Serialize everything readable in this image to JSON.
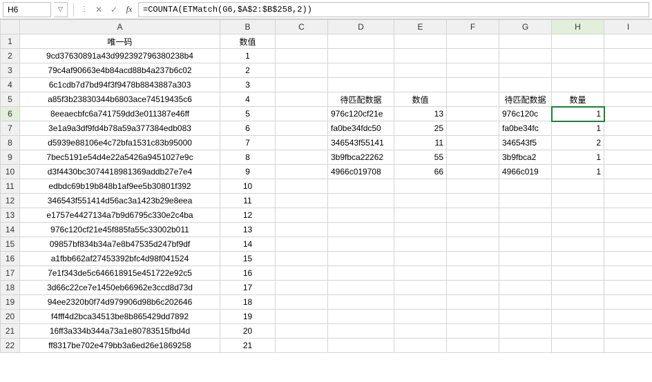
{
  "nameBox": "H6",
  "formula": "=COUNTA(ETMatch(G6,$A$2:$B$258,2))",
  "columns": [
    "A",
    "B",
    "C",
    "D",
    "E",
    "F",
    "G",
    "H",
    "I"
  ],
  "activeCell": {
    "col": "H",
    "row": 6
  },
  "headers": {
    "A1": "唯一码",
    "B1": "数值",
    "D5": "待匹配数据",
    "E5": "数值",
    "G5": "待匹配数据",
    "H5": "数量"
  },
  "colA": [
    "9cd37630891a43d992392796380238b4",
    "79c4af90663e4b84acd88b4a237b6c02",
    "6c1cdb7d7bd94f3f9478b8843887a303",
    "a85f3b23830344b6803ace74519435c6",
    "8eeaecbfc6a741759dd3e011387e46ff",
    "3e1a9a3df9fd4b78a59a377384edb083",
    "d5939e88106e4c72bfa1531c83b95000",
    "7bec5191e54d4e22a5426a9451027e9c",
    "d3f4430bc3074418981369addb27e7e4",
    "edbdc69b19b848b1af9ee5b30801f392",
    "346543f551414d56ac3a1423b29e8eea",
    "e1757e4427134a7b9d6795c330e2c4ba",
    "976c120cf21e45f885fa55c33002b011",
    "09857bf834b34a7e8b47535d247bf9df",
    "a1fbb662af27453392bfc4d98f041524",
    "7e1f343de5c646618915e451722e92c5",
    "3d66c22ce7e1450eb66962e3ccd8d73d",
    "94ee2320b0f74d979906d98b6c202646",
    "f4fff4d2bca34513be8b865429dd7892",
    "16ff3a334b344a73a1e80783515fbd4d",
    "ff8317be702e479bb3a6ed26e1869258"
  ],
  "colB": [
    1,
    2,
    3,
    4,
    5,
    6,
    7,
    8,
    9,
    10,
    11,
    12,
    13,
    14,
    15,
    16,
    17,
    18,
    19,
    20,
    21
  ],
  "colD": [
    "976c120cf21e",
    "fa0be34fdc50",
    "346543f55141",
    "3b9fbca22262",
    "4966c019708"
  ],
  "colE": [
    13,
    25,
    11,
    55,
    66
  ],
  "colG": [
    "976c120c",
    "fa0be34fc",
    "346543f5",
    "3b9fbca2",
    "4966c019"
  ],
  "colH": [
    1,
    1,
    2,
    1,
    1
  ],
  "colors": {
    "activeBorder": "#1a7f37",
    "headerBg": "#f0f0f0",
    "activeHeaderBg": "#e2efda",
    "gridBorder": "#d4d4d4"
  }
}
